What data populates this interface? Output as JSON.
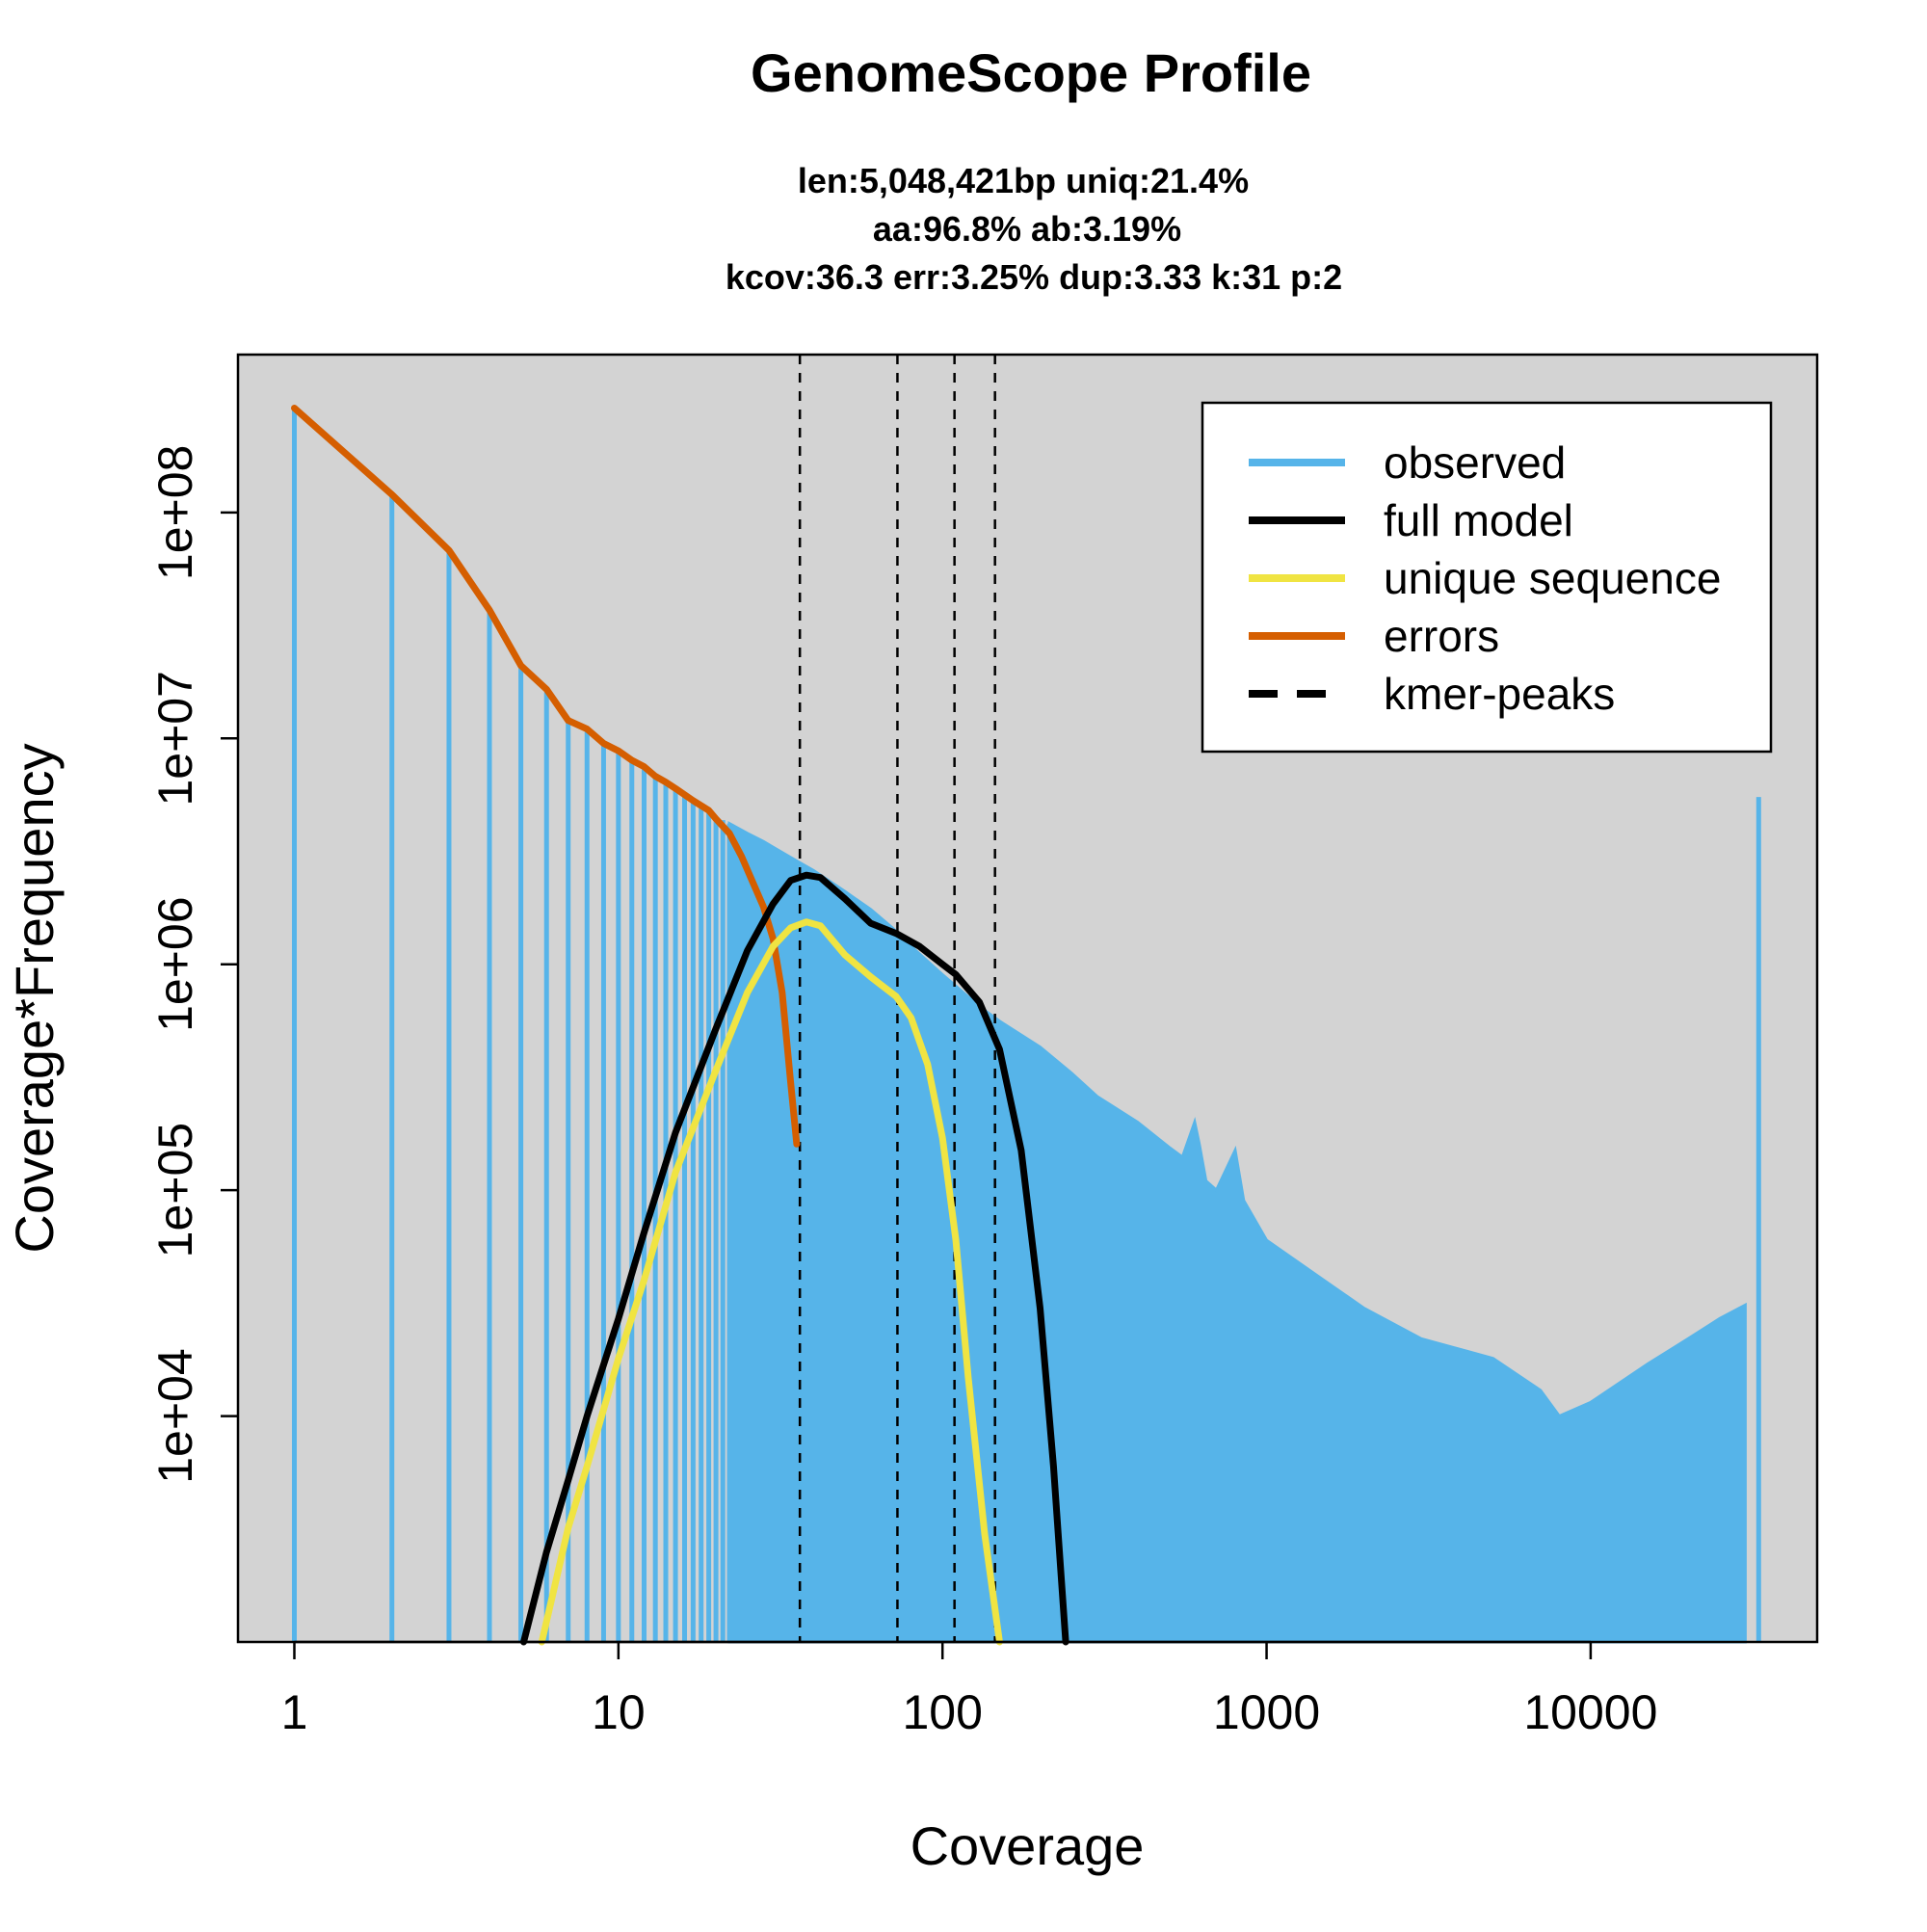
{
  "chart_data": {
    "type": "line",
    "title": "GenomeScope Profile",
    "subtitle_lines": [
      "len:5,048,421bp uniq:21.4%",
      "aa:96.8% ab:3.19%",
      "kcov:36.3 err:3.25%  dup:3.33  k:31 p:2"
    ],
    "xlabel": "Coverage",
    "ylabel": "Coverage*Frequency",
    "x_scale": "log",
    "y_scale": "log",
    "xlim": [
      0.67,
      50000
    ],
    "ylim": [
      1000,
      500000000
    ],
    "x_ticks": [
      1,
      10,
      100,
      1000,
      10000
    ],
    "x_tick_labels": [
      "1",
      "10",
      "100",
      "1000",
      "10000"
    ],
    "y_ticks": [
      10000,
      100000,
      1000000,
      10000000,
      100000000
    ],
    "y_tick_labels": [
      "1e+04",
      "1e+05",
      "1e+06",
      "1e+07",
      "1e+08"
    ],
    "background_color": "#d3d3d3",
    "legend_position": "top-right",
    "legend": [
      {
        "label": "observed",
        "color": "#56b4e9",
        "style": "solid"
      },
      {
        "label": "full model",
        "color": "#000000",
        "style": "solid"
      },
      {
        "label": "unique sequence",
        "color": "#f0e442",
        "style": "solid"
      },
      {
        "label": "errors",
        "color": "#d55e00",
        "style": "solid"
      },
      {
        "label": "kmer-peaks",
        "color": "#000000",
        "style": "dashed"
      }
    ],
    "kmer_peaks": [
      36.3,
      72.6,
      108.9,
      145.2
    ],
    "series": [
      {
        "name": "observed",
        "type": "histogram",
        "color": "#56b4e9",
        "points": [
          [
            1,
            290000000
          ],
          [
            2,
            120000000
          ],
          [
            3,
            68000000
          ],
          [
            4,
            37000000
          ],
          [
            5,
            21000000
          ],
          [
            6,
            16000000
          ],
          [
            7,
            12000000
          ],
          [
            8,
            11000000
          ],
          [
            9,
            9500000
          ],
          [
            10,
            8800000
          ],
          [
            11,
            8000000
          ],
          [
            12,
            7400000
          ],
          [
            13,
            6800000
          ],
          [
            14,
            6300000
          ],
          [
            15,
            6000000
          ],
          [
            16,
            5600000
          ],
          [
            17,
            5300000
          ],
          [
            18,
            5000000
          ],
          [
            19,
            4750000
          ],
          [
            20,
            4500000
          ],
          [
            22,
            4200000
          ],
          [
            25,
            3800000
          ],
          [
            28,
            3500000
          ],
          [
            30,
            3300000
          ],
          [
            35,
            2900000
          ],
          [
            40,
            2600000
          ],
          [
            50,
            2100000
          ],
          [
            60,
            1750000
          ],
          [
            70,
            1450000
          ],
          [
            80,
            1200000
          ],
          [
            100,
            900000
          ],
          [
            130,
            650000
          ],
          [
            150,
            560000
          ],
          [
            200,
            430000
          ],
          [
            250,
            330000
          ],
          [
            300,
            260000
          ],
          [
            400,
            200000
          ],
          [
            500,
            155000
          ],
          [
            550,
            140000
          ],
          [
            600,
            200000
          ],
          [
            620,
            160000
          ],
          [
            650,
            110000
          ],
          [
            700,
            100000
          ],
          [
            800,
            150000
          ],
          [
            850,
            90000
          ],
          [
            1000,
            60000
          ],
          [
            1500,
            40000
          ],
          [
            2000,
            30000
          ],
          [
            3000,
            22000
          ],
          [
            5000,
            18000
          ],
          [
            7000,
            13000
          ],
          [
            8000,
            10000
          ],
          [
            10000,
            11500
          ],
          [
            15000,
            17000
          ],
          [
            20000,
            22000
          ],
          [
            25000,
            27000
          ],
          [
            30000,
            31000
          ],
          [
            33000,
            5500000
          ]
        ]
      },
      {
        "name": "full model",
        "color": "#000000",
        "points": [
          [
            5.1,
            1000
          ],
          [
            6,
            2500
          ],
          [
            7,
            5200
          ],
          [
            8,
            10000
          ],
          [
            10,
            27000
          ],
          [
            12,
            65000
          ],
          [
            15,
            180000
          ],
          [
            20,
            520000
          ],
          [
            25,
            1150000
          ],
          [
            30,
            1850000
          ],
          [
            34,
            2350000
          ],
          [
            38,
            2480000
          ],
          [
            42,
            2420000
          ],
          [
            50,
            1950000
          ],
          [
            60,
            1520000
          ],
          [
            72,
            1370000
          ],
          [
            85,
            1200000
          ],
          [
            100,
            1000000
          ],
          [
            110,
            900000
          ],
          [
            130,
            680000
          ],
          [
            150,
            420000
          ],
          [
            175,
            150000
          ],
          [
            200,
            30000
          ],
          [
            220,
            6000
          ],
          [
            240,
            1000
          ]
        ]
      },
      {
        "name": "unique sequence",
        "color": "#f0e442",
        "points": [
          [
            5.8,
            1000
          ],
          [
            7,
            3200
          ],
          [
            8,
            6000
          ],
          [
            10,
            18000
          ],
          [
            12,
            40000
          ],
          [
            15,
            120000
          ],
          [
            20,
            340000
          ],
          [
            25,
            750000
          ],
          [
            30,
            1200000
          ],
          [
            34,
            1450000
          ],
          [
            38,
            1540000
          ],
          [
            42,
            1480000
          ],
          [
            50,
            1100000
          ],
          [
            60,
            880000
          ],
          [
            72,
            720000
          ],
          [
            80,
            580000
          ],
          [
            90,
            360000
          ],
          [
            100,
            170000
          ],
          [
            110,
            60000
          ],
          [
            120,
            15000
          ],
          [
            135,
            3000
          ],
          [
            150,
            1000
          ]
        ]
      },
      {
        "name": "errors",
        "color": "#d55e00",
        "points": [
          [
            1,
            290000000
          ],
          [
            2,
            120000000
          ],
          [
            3,
            68000000
          ],
          [
            4,
            37000000
          ],
          [
            5,
            21000000
          ],
          [
            6,
            16500000
          ],
          [
            7,
            12000000
          ],
          [
            8,
            11000000
          ],
          [
            9,
            9500000
          ],
          [
            10,
            8800000
          ],
          [
            11,
            8000000
          ],
          [
            12,
            7500000
          ],
          [
            13,
            6800000
          ],
          [
            14,
            6400000
          ],
          [
            15,
            6000000
          ],
          [
            17,
            5300000
          ],
          [
            19,
            4800000
          ],
          [
            20,
            4400000
          ],
          [
            22,
            3800000
          ],
          [
            24,
            3000000
          ],
          [
            26,
            2300000
          ],
          [
            28,
            1800000
          ],
          [
            30,
            1300000
          ],
          [
            32,
            750000
          ],
          [
            34,
            300000
          ],
          [
            35.5,
            160000
          ]
        ]
      }
    ]
  }
}
